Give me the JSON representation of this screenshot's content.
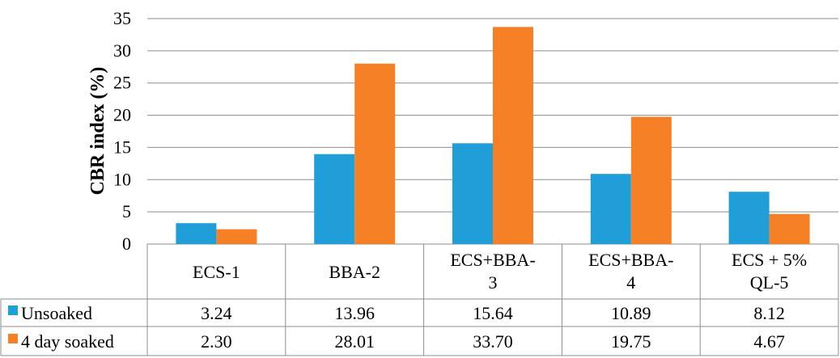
{
  "chart_data": {
    "type": "bar",
    "ylabel": "CBR index (%)",
    "ylim": [
      0,
      35
    ],
    "yticks": [
      0,
      5,
      10,
      15,
      20,
      25,
      30,
      35
    ],
    "grid": true,
    "legend": "table-left",
    "categories": [
      [
        "ECS-1"
      ],
      [
        "BBA-2"
      ],
      [
        "ECS+BBA-",
        "3"
      ],
      [
        "ECS+BBA-",
        "4"
      ],
      [
        "ECS + 5%",
        "QL-5"
      ]
    ],
    "series": [
      {
        "name": "Unsoaked",
        "color": "#1F9ED8",
        "values": [
          3.24,
          13.96,
          15.64,
          10.89,
          8.12
        ],
        "labels": [
          "3.24",
          "13.96",
          "15.64",
          "10.89",
          "8.12"
        ]
      },
      {
        "name": "4 day soaked",
        "color": "#F58025",
        "values": [
          2.3,
          28.01,
          33.7,
          19.75,
          4.67
        ],
        "labels": [
          "2.30",
          "28.01",
          "33.70",
          "19.75",
          "4.67"
        ]
      }
    ]
  }
}
